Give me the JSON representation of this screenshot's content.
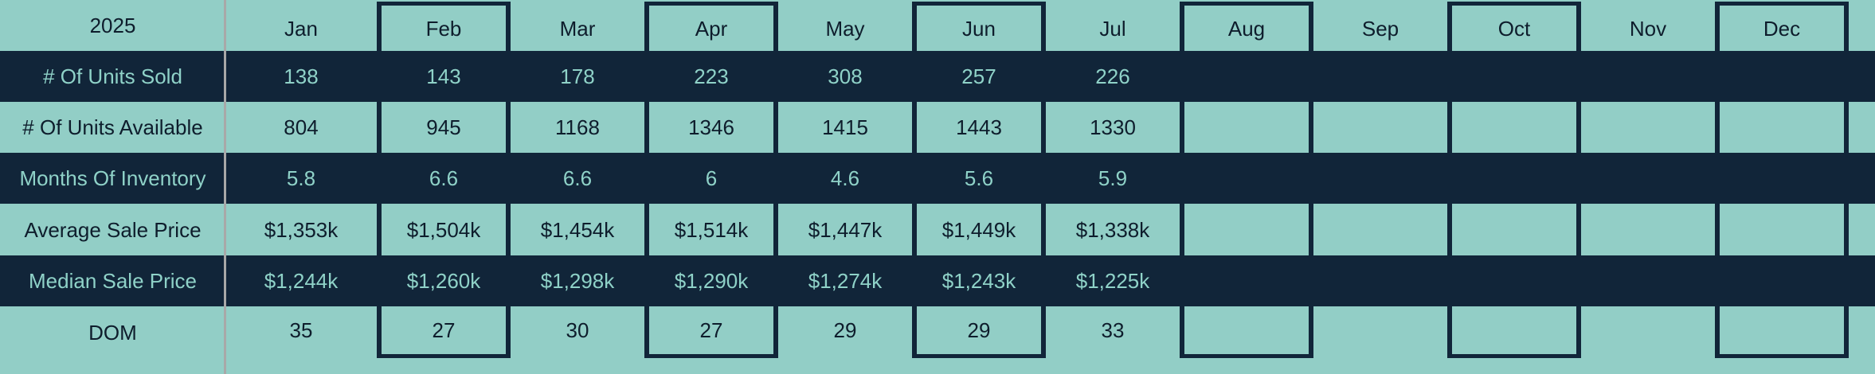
{
  "year": "2025",
  "months": [
    "Jan",
    "Feb",
    "Mar",
    "Apr",
    "May",
    "Jun",
    "Jul",
    "Aug",
    "Sep",
    "Oct",
    "Nov",
    "Dec"
  ],
  "rows": [
    {
      "label": "# Of Units Sold",
      "values": [
        "138",
        "143",
        "178",
        "223",
        "308",
        "257",
        "226",
        "",
        "",
        "",
        "",
        ""
      ]
    },
    {
      "label": "# Of Units Available",
      "values": [
        "804",
        "945",
        "1168",
        "1346",
        "1415",
        "1443",
        "1330",
        "",
        "",
        "",
        "",
        ""
      ]
    },
    {
      "label": "Months Of Inventory",
      "values": [
        "5.8",
        "6.6",
        "6.6",
        "6",
        "4.6",
        "5.6",
        "5.9",
        "",
        "",
        "",
        "",
        ""
      ]
    },
    {
      "label": "Average Sale Price",
      "values": [
        "$1,353k",
        "$1,504k",
        "$1,454k",
        "$1,514k",
        "$1,447k",
        "$1,449k",
        "$1,338k",
        "",
        "",
        "",
        "",
        ""
      ]
    },
    {
      "label": "Median Sale Price",
      "values": [
        "$1,244k",
        "$1,260k",
        "$1,298k",
        "$1,290k",
        "$1,274k",
        "$1,243k",
        "$1,225k",
        "",
        "",
        "",
        "",
        ""
      ]
    },
    {
      "label": "DOM",
      "values": [
        "35",
        "27",
        "30",
        "27",
        "29",
        "29",
        "33",
        "",
        "",
        "",
        "",
        ""
      ]
    }
  ],
  "colors": {
    "row_dark_bg": "#112539",
    "row_teal_bg": "#92cec6",
    "text_on_dark": "#8fd2c8",
    "text_on_teal": "#0e1d2c",
    "box_border": "#112539",
    "gridline_gray": "#a8a8a8"
  }
}
